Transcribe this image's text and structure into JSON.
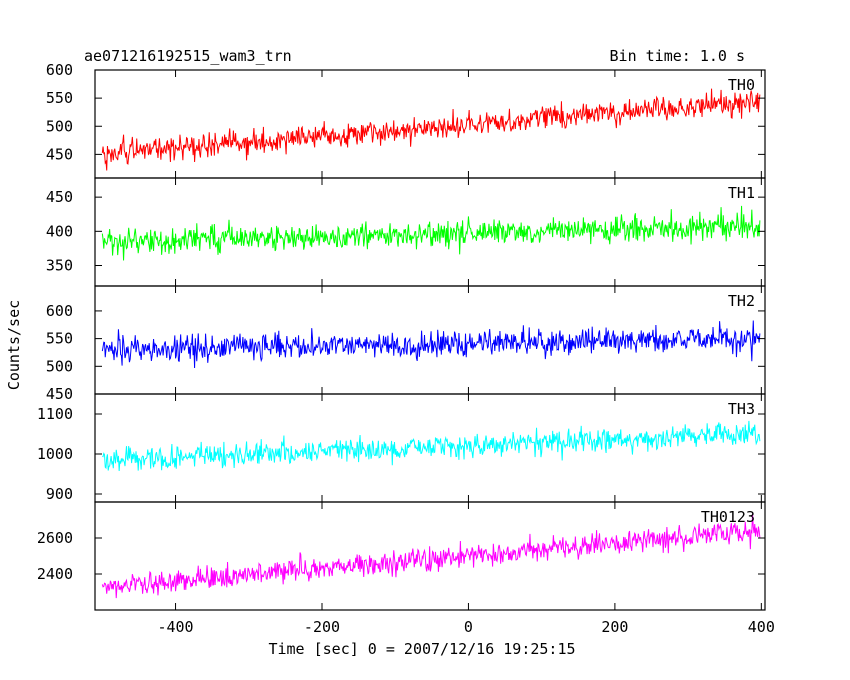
{
  "header": {
    "title": "ae071216192515_wam3_trn",
    "bin_time": "Bin time: 1.0 s"
  },
  "chart_data": {
    "type": "line",
    "xlabel": "Time [sec] 0 = 2007/12/16 19:25:15",
    "ylabel": "Counts/sec",
    "xlim": [
      -510,
      405
    ],
    "x_ticks": [
      -400,
      -200,
      0,
      200,
      400
    ],
    "x_step": 1,
    "grid": false,
    "panels": [
      {
        "name": "TH0",
        "color": "#ff0000",
        "ylim": [
          408,
          600
        ],
        "y_ticks": [
          450,
          500,
          550,
          600
        ],
        "trend_start": 450,
        "trend_end": 545,
        "noise": 28
      },
      {
        "name": "TH1",
        "color": "#00ff00",
        "ylim": [
          320,
          478
        ],
        "y_ticks": [
          350,
          400,
          450
        ],
        "trend_start": 383,
        "trend_end": 408,
        "noise": 24
      },
      {
        "name": "TH2",
        "color": "#0000ff",
        "ylim": [
          450,
          645
        ],
        "y_ticks": [
          450,
          500,
          550,
          600
        ],
        "trend_start": 530,
        "trend_end": 550,
        "noise": 30
      },
      {
        "name": "TH3",
        "color": "#00ffff",
        "ylim": [
          880,
          1150
        ],
        "y_ticks": [
          900,
          1000,
          1100
        ],
        "trend_start": 985,
        "trend_end": 1050,
        "noise": 38
      },
      {
        "name": "TH0123",
        "color": "#ff00ff",
        "ylim": [
          2200,
          2800
        ],
        "y_ticks": [
          2400,
          2600
        ],
        "trend_start": 2330,
        "trend_end": 2640,
        "noise": 80
      }
    ]
  }
}
